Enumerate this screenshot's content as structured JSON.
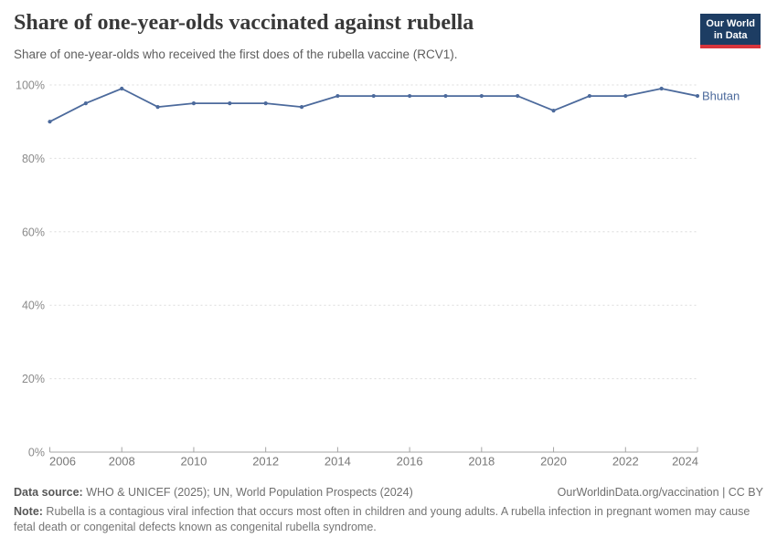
{
  "header": {
    "title": "Share of one-year-olds vaccinated against rubella",
    "subtitle": "Share of one-year-olds who received the first does of the rubella vaccine (RCV1).",
    "logo": {
      "line1": "Our World",
      "line2": "in Data"
    }
  },
  "chart_data": {
    "type": "line",
    "title": "Share of one-year-olds vaccinated against rubella",
    "x": [
      2006,
      2007,
      2008,
      2009,
      2010,
      2011,
      2012,
      2013,
      2014,
      2015,
      2016,
      2017,
      2018,
      2019,
      2020,
      2021,
      2022,
      2023,
      2024
    ],
    "series": [
      {
        "name": "Bhutan",
        "color": "#4c6a9c",
        "values": [
          90,
          95,
          99,
          94,
          95,
          95,
          95,
          94,
          97,
          97,
          97,
          97,
          97,
          97,
          93,
          97,
          97,
          99,
          97
        ]
      }
    ],
    "xlim": [
      2006,
      2024
    ],
    "ylim": [
      0,
      100
    ],
    "yticks": [
      0,
      20,
      40,
      60,
      80,
      100
    ],
    "xticks": [
      2006,
      2008,
      2010,
      2012,
      2014,
      2016,
      2018,
      2020,
      2022,
      2024
    ],
    "ytick_suffix": "%",
    "grid": "horizontal-dashed",
    "legend_position": "end-of-line",
    "end_label": "Bhutan"
  },
  "footer": {
    "data_source_label": "Data source:",
    "data_source_text": " WHO & UNICEF (2025); UN, World Population Prospects (2024)",
    "credit": "OurWorldinData.org/vaccination | CC BY",
    "note_label": "Note:",
    "note_text": " Rubella is a contagious viral infection that occurs most often in children and young adults. A rubella infection in pregnant women may cause fetal death or congenital defects known as congenital rubella syndrome."
  },
  "colors": {
    "line": "#4c6a9c",
    "logo_background": "#1d3d63",
    "logo_stripe": "#d8353c",
    "gridline": "#dcdcdc",
    "axis": "#a5a5a5",
    "axis_label": "#8a8a8a",
    "title_text": "#383838",
    "subtitle_text": "#5e5e5e",
    "footer_text": "#6f6f6f"
  }
}
